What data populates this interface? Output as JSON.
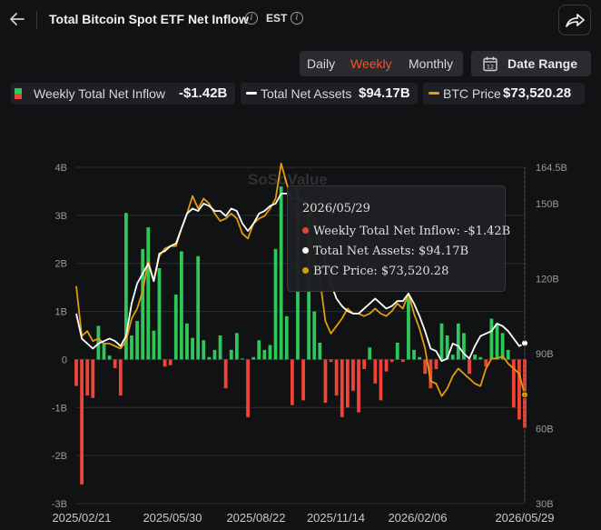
{
  "header": {
    "title": "Total Bitcoin Spot ETF Net Inflow",
    "timezone": "EST",
    "back_icon": "arrow-left-icon",
    "share_icon": "share-icon"
  },
  "periods": {
    "daily": "Daily",
    "weekly": "Weekly",
    "monthly": "Monthly",
    "active": "Weekly"
  },
  "date_range_label": "Date Range",
  "legend": [
    {
      "label": "Weekly Total Net Inflow",
      "value": "-$1.42B"
    },
    {
      "label": "Total Net Assets",
      "value": "$94.17B"
    },
    {
      "label": "BTC Price",
      "value": "$73,520.28"
    }
  ],
  "tooltip": {
    "date": "2026/05/29",
    "inflow": "Weekly Total Net Inflow: -$1.42B",
    "assets": "Total Net Assets: $94.17B",
    "price": "BTC Price: $73,520.28"
  },
  "watermark": "SoSoValue",
  "colors": {
    "positive": "#2ec85a",
    "negative": "#f04438",
    "assets": "#ffffff",
    "price": "#e39b0e",
    "accent": "#f0552e"
  },
  "chart_data": {
    "type": "bar",
    "left_axis": {
      "ticks": [
        "4B",
        "3B",
        "2B",
        "1B",
        "0",
        "-1B",
        "-2B",
        "-3B"
      ],
      "ylim": [
        -3,
        4
      ],
      "unit": "B USD"
    },
    "right_axis": {
      "ticks": [
        "164.5B",
        "150B",
        "120B",
        "90B",
        "60B",
        "30B"
      ],
      "ylim": [
        30,
        164.5
      ]
    },
    "x_ticks": [
      "2025/02/21",
      "2025/05/30",
      "2025/08/22",
      "2025/11/14",
      "2026/02/06",
      "2026/05/29"
    ],
    "series": [
      {
        "name": "Weekly Total Net Inflow",
        "type": "bar",
        "values": [
          -0.55,
          -2.6,
          -0.75,
          -0.8,
          0.7,
          0.35,
          0.08,
          -0.18,
          -0.75,
          3.05,
          0.5,
          0.8,
          2.3,
          2.75,
          0.6,
          1.9,
          -0.15,
          -0.12,
          1.35,
          2.25,
          0.75,
          0.45,
          2.15,
          0.4,
          0.05,
          0.2,
          0.5,
          -0.6,
          0.2,
          0.55,
          0.02,
          -1.2,
          0.05,
          0.4,
          0.2,
          0.3,
          2.3,
          3.6,
          0.9,
          -0.95,
          3.6,
          -0.85,
          3.1,
          1.0,
          0.35,
          -0.9,
          -0.05,
          -0.75,
          -1.2,
          -1.0,
          -0.65,
          -1.1,
          -0.2,
          0.25,
          -0.5,
          -0.85,
          -0.25,
          -0.05,
          0.35,
          -0.05,
          1.3,
          0.2,
          0.05,
          -0.3,
          -0.6,
          -0.2,
          0.75,
          0.5,
          0.1,
          0.75,
          0.55,
          -0.3,
          0.1,
          0.05,
          -0.15,
          0.85,
          0.75,
          0.55,
          0.2,
          -1.0,
          -1.25,
          -1.42
        ]
      },
      {
        "name": "Total Net Assets",
        "type": "line",
        "values": [
          106,
          96,
          94,
          92,
          94,
          95,
          96,
          95,
          93,
          97,
          110,
          118,
          122,
          126,
          119,
          130,
          131,
          133,
          134,
          140,
          146,
          148,
          147,
          150,
          149,
          147,
          147,
          145,
          148,
          147,
          142,
          139,
          142,
          146,
          147,
          149,
          150,
          154,
          154,
          152,
          152,
          151,
          150,
          142,
          135,
          127,
          118,
          112,
          109,
          107,
          106,
          106,
          108,
          110,
          112,
          110,
          108,
          109,
          111,
          111,
          114,
          110,
          105,
          99,
          92,
          91,
          87,
          88,
          94,
          93,
          90,
          88,
          93,
          97,
          98,
          99,
          102,
          101,
          99,
          96,
          93,
          94.17
        ]
      },
      {
        "name": "BTC Price",
        "type": "line",
        "values": [
          117,
          97,
          99,
          95,
          96,
          94,
          94,
          93,
          92,
          95,
          104,
          108,
          115,
          127,
          119,
          129,
          132,
          133,
          133,
          140,
          146,
          153,
          148,
          152,
          150,
          146,
          143,
          144,
          146,
          144,
          138,
          136,
          142,
          144,
          145,
          148,
          152,
          166,
          158,
          150,
          148,
          145,
          140,
          127,
          120,
          103,
          98,
          101,
          104,
          108,
          106,
          106,
          105,
          106,
          108,
          106,
          105,
          107,
          110,
          108,
          114,
          106,
          100,
          92,
          79,
          78,
          73,
          76,
          81,
          84,
          82,
          80,
          78,
          77,
          84,
          88,
          88,
          89,
          86,
          84,
          82,
          73.52
        ]
      }
    ]
  }
}
